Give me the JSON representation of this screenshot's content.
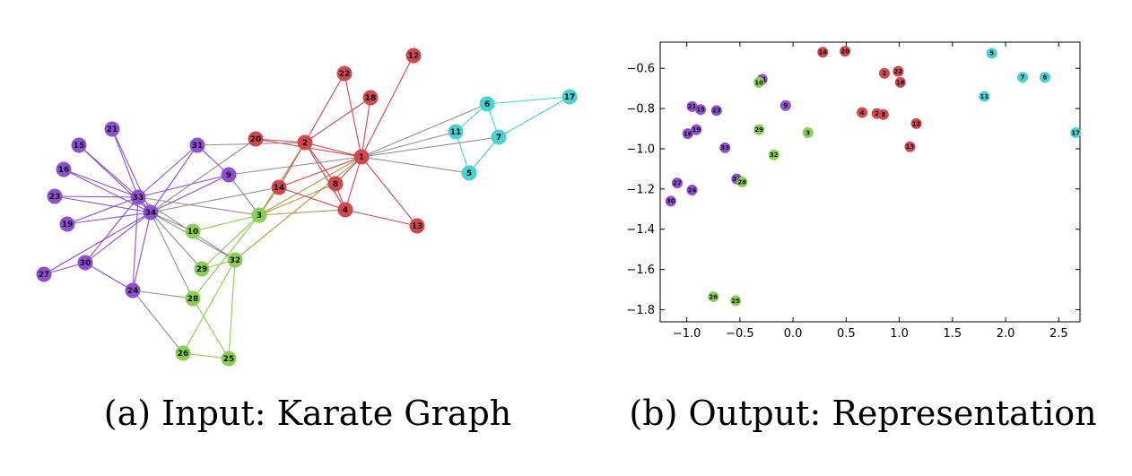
{
  "captions": {
    "a": "(a) Input: Karate Graph",
    "b": "(b) Output: Representation"
  },
  "colors": {
    "red": "#d0484e",
    "purple": "#8e4fd2",
    "green": "#88cf54",
    "cyan": "#4ad0d0",
    "edge_gray": "#909090",
    "edge_olive": "#b09a4a"
  },
  "graph": {
    "groups": {
      "red": [
        "1",
        "2",
        "4",
        "8",
        "12",
        "13",
        "14",
        "18",
        "20",
        "22"
      ],
      "purple": [
        "9",
        "15",
        "16",
        "19",
        "21",
        "23",
        "24",
        "27",
        "30",
        "31",
        "33",
        "34"
      ],
      "green": [
        "3",
        "10",
        "25",
        "26",
        "28",
        "29",
        "32"
      ],
      "cyan": [
        "5",
        "6",
        "7",
        "11",
        "17"
      ]
    }
  },
  "chart_data": {
    "type": "scatter",
    "title": "",
    "xlabel": "",
    "ylabel": "",
    "xlim": [
      -1.25,
      2.7
    ],
    "ylim": [
      -1.86,
      -0.47
    ],
    "xticks": [
      "−1.0",
      "−0.5",
      "0.0",
      "0.5",
      "1.0",
      "1.5",
      "2.0",
      "2.5"
    ],
    "xtick_values": [
      -1.0,
      -0.5,
      0.0,
      0.5,
      1.0,
      1.5,
      2.0,
      2.5
    ],
    "yticks": [
      "−0.6",
      "−0.8",
      "−1.0",
      "−1.2",
      "−1.4",
      "−1.6",
      "−1.8"
    ],
    "ytick_values": [
      -0.6,
      -0.8,
      -1.0,
      -1.2,
      -1.4,
      -1.6,
      -1.8
    ],
    "points": [
      {
        "label": "14",
        "x": 0.28,
        "y": -0.52,
        "group": "red"
      },
      {
        "label": "20",
        "x": 0.49,
        "y": -0.515,
        "group": "red"
      },
      {
        "label": "1",
        "x": 0.86,
        "y": -0.625,
        "group": "red"
      },
      {
        "label": "22",
        "x": 0.99,
        "y": -0.615,
        "group": "red"
      },
      {
        "label": "18",
        "x": 1.01,
        "y": -0.67,
        "group": "red"
      },
      {
        "label": "4",
        "x": 0.65,
        "y": -0.82,
        "group": "red"
      },
      {
        "label": "2",
        "x": 0.79,
        "y": -0.825,
        "group": "red"
      },
      {
        "label": "8",
        "x": 0.85,
        "y": -0.83,
        "group": "red"
      },
      {
        "label": "12",
        "x": 1.16,
        "y": -0.875,
        "group": "red"
      },
      {
        "label": "13",
        "x": 1.1,
        "y": -0.99,
        "group": "red"
      },
      {
        "label": "31",
        "x": -0.29,
        "y": -0.655,
        "group": "purple"
      },
      {
        "label": "21",
        "x": -0.95,
        "y": -0.79,
        "group": "purple"
      },
      {
        "label": "15",
        "x": -0.87,
        "y": -0.805,
        "group": "purple"
      },
      {
        "label": "23",
        "x": -0.72,
        "y": -0.81,
        "group": "purple"
      },
      {
        "label": "9",
        "x": -0.07,
        "y": -0.785,
        "group": "purple"
      },
      {
        "label": "19",
        "x": -0.91,
        "y": -0.905,
        "group": "purple"
      },
      {
        "label": "16",
        "x": -0.99,
        "y": -0.925,
        "group": "purple"
      },
      {
        "label": "33",
        "x": -0.64,
        "y": -0.995,
        "group": "purple"
      },
      {
        "label": "34",
        "x": -0.53,
        "y": -1.15,
        "group": "purple"
      },
      {
        "label": "27",
        "x": -1.09,
        "y": -1.17,
        "group": "purple"
      },
      {
        "label": "24",
        "x": -0.95,
        "y": -1.205,
        "group": "purple"
      },
      {
        "label": "30",
        "x": -1.15,
        "y": -1.26,
        "group": "purple"
      },
      {
        "label": "10",
        "x": -0.32,
        "y": -0.67,
        "group": "green"
      },
      {
        "label": "29",
        "x": -0.32,
        "y": -0.905,
        "group": "green"
      },
      {
        "label": "3",
        "x": 0.14,
        "y": -0.92,
        "group": "green"
      },
      {
        "label": "32",
        "x": -0.18,
        "y": -1.03,
        "group": "green"
      },
      {
        "label": "28",
        "x": -0.48,
        "y": -1.165,
        "group": "green"
      },
      {
        "label": "26",
        "x": -0.75,
        "y": -1.735,
        "group": "green"
      },
      {
        "label": "25",
        "x": -0.54,
        "y": -1.755,
        "group": "green"
      },
      {
        "label": "5",
        "x": 1.87,
        "y": -0.525,
        "group": "cyan"
      },
      {
        "label": "7",
        "x": 2.16,
        "y": -0.645,
        "group": "cyan"
      },
      {
        "label": "6",
        "x": 2.37,
        "y": -0.645,
        "group": "cyan"
      },
      {
        "label": "11",
        "x": 1.8,
        "y": -0.74,
        "group": "cyan"
      },
      {
        "label": "17",
        "x": 2.66,
        "y": -0.92,
        "group": "cyan"
      }
    ]
  }
}
